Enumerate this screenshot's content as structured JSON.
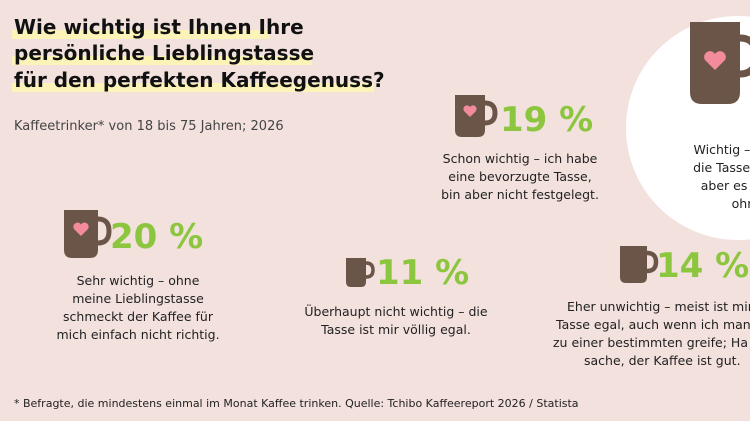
{
  "header": {
    "title": [
      "Wie wichtig ist Ihnen Ihre",
      "persönliche Lieblingstasse",
      "für den perfekten Kaffeegenuss?"
    ],
    "subtitle": "Kaffeetrinker* von 18 bis 75 Jahren; 2026"
  },
  "items": [
    {
      "percent": "19 %",
      "text": [
        "Schon wichtig – ich habe",
        "eine bevorzugte Tasse,",
        "bin aber nicht festgelegt."
      ]
    },
    {
      "percent": "20 %",
      "text": [
        "Sehr wichtig – ohne",
        "meine Lieblingstasse",
        "schmeckt der Kaffee für",
        "mich einfach nicht richtig."
      ]
    },
    {
      "percent": "11 %",
      "text": [
        "Überhaupt nicht wichtig – die",
        "Tasse ist mir völlig egal."
      ]
    },
    {
      "percent": "14 %",
      "text": [
        "Eher unwichtig – meist ist mir",
        "Tasse egal, auch wenn ich manc",
        "zu einer bestimmten greife; Ha",
        "sache, der Kaffee ist gut."
      ]
    },
    {
      "text": [
        "Wichtig –",
        "die Tasse ar",
        "aber es g",
        "ohr"
      ]
    }
  ],
  "footnote": "* Befragte, die mindestens einmal im Monat Kaffee trinken. Quelle: Tchibo Kaffeereport 2026 / Statista"
}
